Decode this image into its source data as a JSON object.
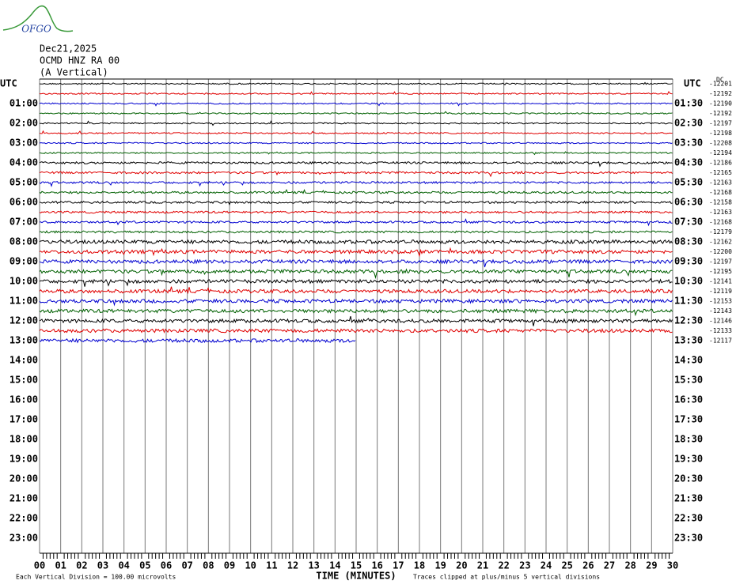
{
  "logo": "OFGO",
  "header": {
    "date": "Dec21,2025",
    "station": "OCMD HNZ RA 00",
    "component": "(A Vertical)"
  },
  "left_title": "UTC",
  "right_title": "UTC",
  "dc_label": "DC",
  "hour_labels": [
    {
      "left": "",
      "right": ""
    },
    {
      "left": "01:00",
      "right": "01:30"
    },
    {
      "left": "02:00",
      "right": "02:30"
    },
    {
      "left": "03:00",
      "right": "03:30"
    },
    {
      "left": "04:00",
      "right": "04:30"
    },
    {
      "left": "05:00",
      "right": "05:30"
    },
    {
      "left": "06:00",
      "right": "06:30"
    },
    {
      "left": "07:00",
      "right": "07:30"
    },
    {
      "left": "08:00",
      "right": "08:30"
    },
    {
      "left": "09:00",
      "right": "09:30"
    },
    {
      "left": "10:00",
      "right": "10:30"
    },
    {
      "left": "11:00",
      "right": "11:30"
    },
    {
      "left": "12:00",
      "right": "12:30"
    },
    {
      "left": "13:00",
      "right": "13:30"
    },
    {
      "left": "14:00",
      "right": "14:30"
    },
    {
      "left": "15:00",
      "right": "15:30"
    },
    {
      "left": "16:00",
      "right": "16:30"
    },
    {
      "left": "17:00",
      "right": "17:30"
    },
    {
      "left": "18:00",
      "right": "18:30"
    },
    {
      "left": "19:00",
      "right": "19:30"
    },
    {
      "left": "20:00",
      "right": "20:30"
    },
    {
      "left": "21:00",
      "right": "21:30"
    },
    {
      "left": "22:00",
      "right": "22:30"
    },
    {
      "left": "23:00",
      "right": "23:30"
    }
  ],
  "traces": [
    {
      "offset": "-12201",
      "color": "#000000"
    },
    {
      "offset": "-12192",
      "color": "#e00000"
    },
    {
      "offset": "-12190",
      "color": "#0000d0"
    },
    {
      "offset": "-12192",
      "color": "#006000"
    },
    {
      "offset": "-12197",
      "color": "#000000"
    },
    {
      "offset": "-12198",
      "color": "#e00000"
    },
    {
      "offset": "-12208",
      "color": "#0000d0"
    },
    {
      "offset": "-12194",
      "color": "#006000"
    },
    {
      "offset": "-12186",
      "color": "#000000"
    },
    {
      "offset": "-12165",
      "color": "#e00000"
    },
    {
      "offset": "-12163",
      "color": "#0000d0"
    },
    {
      "offset": "-12168",
      "color": "#006000"
    },
    {
      "offset": "-12158",
      "color": "#000000"
    },
    {
      "offset": "-12163",
      "color": "#e00000"
    },
    {
      "offset": "-12168",
      "color": "#0000d0"
    },
    {
      "offset": "-12179",
      "color": "#006000"
    },
    {
      "offset": "-12162",
      "color": "#000000"
    },
    {
      "offset": "-12200",
      "color": "#e00000"
    },
    {
      "offset": "-12197",
      "color": "#0000d0"
    },
    {
      "offset": "-12195",
      "color": "#006000"
    },
    {
      "offset": "-12141",
      "color": "#000000"
    },
    {
      "offset": "-12119",
      "color": "#e00000"
    },
    {
      "offset": "-12153",
      "color": "#0000d0"
    },
    {
      "offset": "-12143",
      "color": "#006000"
    },
    {
      "offset": "-12146",
      "color": "#000000"
    },
    {
      "offset": "-12133",
      "color": "#e00000"
    },
    {
      "offset": "-12117",
      "color": "#0000d0",
      "end_minutes": 15
    }
  ],
  "x_axis": {
    "label": "TIME (MINUTES)",
    "ticks": [
      "00",
      "01",
      "02",
      "03",
      "04",
      "05",
      "06",
      "07",
      "08",
      "09",
      "10",
      "11",
      "12",
      "13",
      "14",
      "15",
      "16",
      "17",
      "18",
      "19",
      "20",
      "21",
      "22",
      "23",
      "24",
      "25",
      "26",
      "27",
      "28",
      "29",
      "30"
    ]
  },
  "footer": {
    "scale": "Each Vertical Division =  100.00 microvolts",
    "clip": "Traces clipped at plus/minus 5 vertical divisions"
  }
}
